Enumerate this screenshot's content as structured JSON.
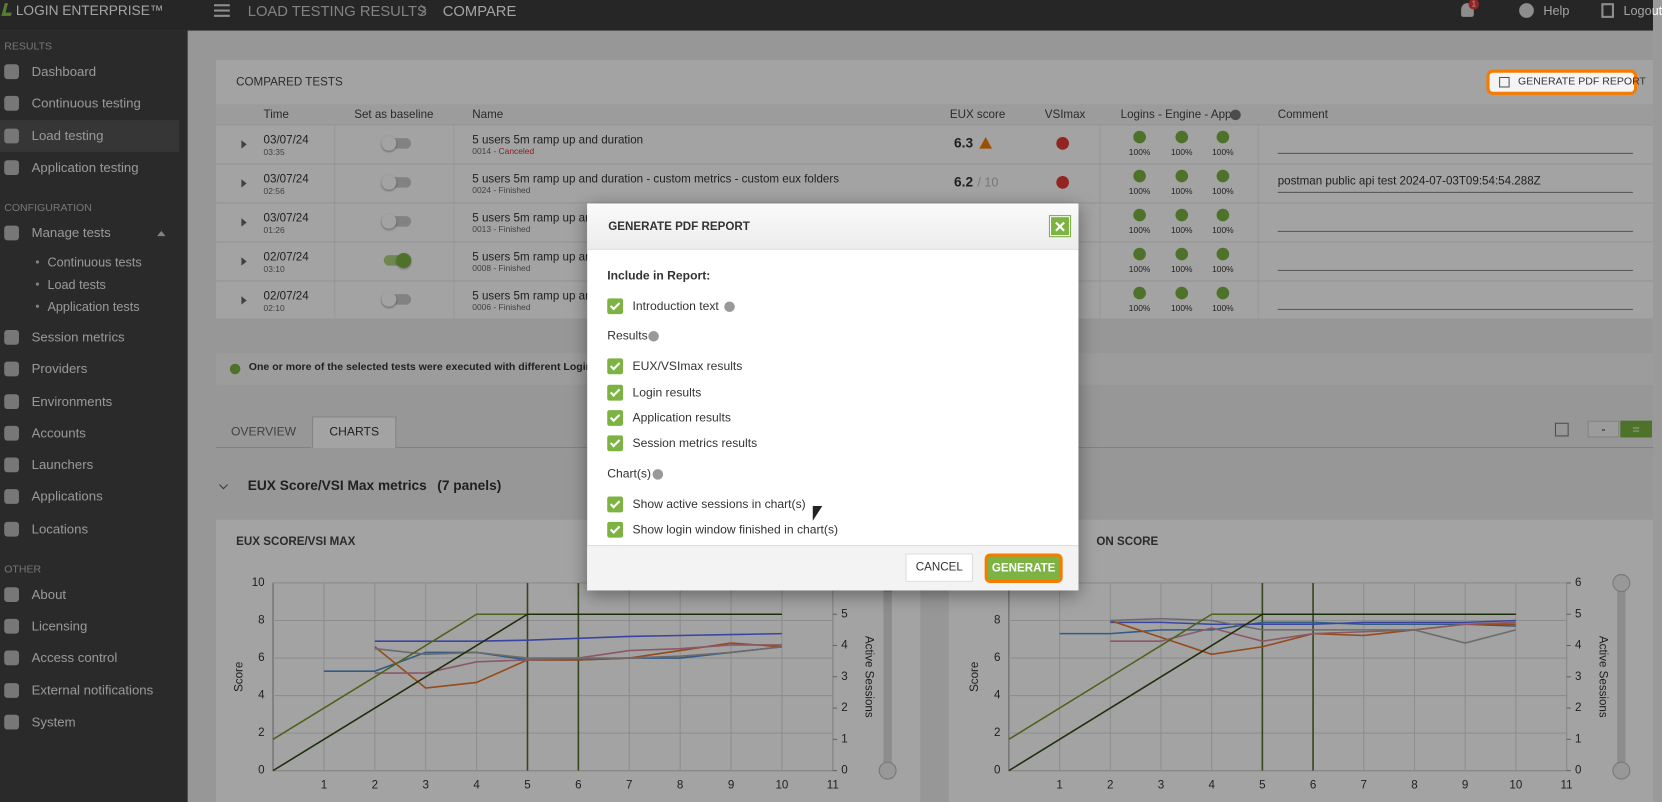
{
  "header": {
    "brand": "LOGIN ENTERPRISE™",
    "breadcrumb": [
      "LOAD TESTING RESULTS",
      "COMPARE"
    ],
    "notifications": "1",
    "help": "Help",
    "logout": "Logout"
  },
  "sidebar": {
    "active": [
      0,
      2
    ],
    "groups": [
      {
        "title": "RESULTS",
        "items": [
          {
            "label": "Dashboard"
          },
          {
            "label": "Continuous testing"
          },
          {
            "label": "Load testing"
          },
          {
            "label": "Application testing"
          }
        ]
      },
      {
        "title": "CONFIGURATION",
        "items": [
          {
            "label": "Manage tests",
            "children": [
              "Continuous tests",
              "Load tests",
              "Application tests"
            ]
          },
          {
            "label": "Session metrics"
          },
          {
            "label": "Providers"
          },
          {
            "label": "Environments"
          },
          {
            "label": "Accounts"
          },
          {
            "label": "Launchers"
          },
          {
            "label": "Applications"
          },
          {
            "label": "Locations"
          }
        ]
      },
      {
        "title": "OTHER",
        "items": [
          {
            "label": "About"
          },
          {
            "label": "Licensing"
          },
          {
            "label": "Access control"
          },
          {
            "label": "External notifications"
          },
          {
            "label": "System"
          }
        ]
      }
    ]
  },
  "compared_tests": {
    "title": "COMPARED TESTS",
    "button": "GENERATE PDF REPORT",
    "columns": [
      "Time",
      "Set as baseline",
      "Name",
      "EUX score",
      "VSImax",
      "Logins - Engine - Apps",
      "Comment"
    ],
    "rows": [
      {
        "date": "03/07/24",
        "time": "03:35",
        "baseline": false,
        "name": "5 users 5m ramp up and duration",
        "id": "0014 - ",
        "status": "Canceled",
        "eux": "6.3",
        "warning": true,
        "results": [
          "100%",
          "100%",
          "100%"
        ],
        "comment": ""
      },
      {
        "date": "03/07/24",
        "time": "02:56",
        "baseline": false,
        "name": "5 users 5m ramp up and duration - custom metrics - custom eux folders",
        "id": "0024 - ",
        "status": "Finished",
        "eux": "6.2",
        "eux_suffix": "/ 10",
        "results": [
          "100%",
          "100%",
          "100%"
        ],
        "comment": "postman public api test 2024-07-03T09:54:54.288Z"
      },
      {
        "date": "03/07/24",
        "time": "01:26",
        "baseline": false,
        "name": "5 users 5m ramp up and d",
        "id": "0013 - ",
        "status": "Finished",
        "results": [
          "100%",
          "100%",
          "100%"
        ],
        "comment": ""
      },
      {
        "date": "02/07/24",
        "time": "03:10",
        "baseline": true,
        "name": "5 users 5m ramp up and d",
        "id": "0008 - ",
        "status": "Finished",
        "results": [
          "100%",
          "100%",
          "100%"
        ],
        "comment": ""
      },
      {
        "date": "02/07/24",
        "time": "02:10",
        "baseline": false,
        "name": "5 users 5m ramp up and d",
        "id": "0006 - ",
        "status": "Finished",
        "results": [
          "100%",
          "100%",
          "100%"
        ],
        "comment": ""
      }
    ]
  },
  "notice": "One or more of the selected tests were executed with different Login Enterprise",
  "tabs": {
    "items": [
      "OVERVIEW",
      "CHARTS"
    ],
    "active": 1,
    "tools": [
      "-",
      "="
    ]
  },
  "panel_group": {
    "title": "EUX Score/VSI Max metrics",
    "count": "(7 panels)"
  },
  "chart_data": [
    {
      "type": "line",
      "title": "EUX SCORE/VSI MAX",
      "ylabel": "Score",
      "y2label": "Active Sessions",
      "xlim": [
        0,
        11
      ],
      "xticks": [
        1,
        2,
        3,
        4,
        5,
        6,
        7,
        8,
        9,
        10,
        11
      ],
      "ylim": [
        0,
        10
      ],
      "yticks": [
        0,
        2,
        4,
        6,
        8,
        10
      ],
      "y2lim": [
        0,
        6
      ],
      "y2ticks": [
        0,
        1,
        2,
        3,
        4,
        5,
        6
      ],
      "grid": true,
      "x_markers": [
        5,
        6
      ],
      "marker_color": "#556b2f",
      "series": [
        {
          "color": "#4f8fd0",
          "x": [
            1,
            2,
            3,
            4,
            5,
            6,
            7,
            8,
            9,
            10
          ],
          "values": [
            5.3,
            5.3,
            6.3,
            6.3,
            5.9,
            5.9,
            6.0,
            6.0,
            6.3,
            6.6
          ]
        },
        {
          "color": "#5b6cff",
          "x": [
            1,
            2,
            3,
            4,
            5,
            6,
            7,
            8,
            9,
            10
          ],
          "values": [
            null,
            6.9,
            6.9,
            6.9,
            6.95,
            7.05,
            7.15,
            7.2,
            7.25,
            7.3
          ]
        },
        {
          "color": "#e8752b",
          "x": [
            1,
            2,
            3,
            4,
            5,
            6,
            7,
            8,
            9,
            10
          ],
          "values": [
            null,
            6.6,
            4.4,
            4.7,
            5.9,
            5.9,
            6.0,
            6.4,
            6.8,
            6.6
          ]
        },
        {
          "color": "#d98aa0",
          "x": [
            1,
            2,
            3,
            4,
            5,
            6,
            7,
            8,
            9,
            10
          ],
          "values": [
            null,
            5.2,
            5.2,
            5.8,
            5.9,
            6.0,
            6.4,
            6.5,
            6.7,
            6.7
          ]
        },
        {
          "color": "#a8a8a8",
          "x": [
            1,
            2,
            3,
            4,
            5,
            6,
            7,
            8,
            9,
            10
          ],
          "values": [
            null,
            6.5,
            6.2,
            6.3,
            6.0,
            6.0,
            6.0,
            6.1,
            6.3,
            6.6
          ]
        },
        {
          "color": "#7a9a2e",
          "axis": "y2",
          "x": [
            0,
            4,
            10
          ],
          "values": [
            1,
            5,
            5
          ]
        },
        {
          "color": "#2e4a10",
          "axis": "y2",
          "x": [
            0,
            5,
            10
          ],
          "values": [
            0,
            5,
            5
          ]
        }
      ]
    },
    {
      "type": "line",
      "title": "ON SCORE",
      "ylabel": "Score",
      "y2label": "Active Sessions",
      "xlim": [
        0,
        11
      ],
      "xticks": [
        1,
        2,
        3,
        4,
        5,
        6,
        7,
        8,
        9,
        10,
        11
      ],
      "ylim": [
        0,
        10
      ],
      "yticks": [
        0,
        2,
        4,
        6,
        8,
        10
      ],
      "y2lim": [
        0,
        6
      ],
      "y2ticks": [
        0,
        1,
        2,
        3,
        4,
        5,
        6
      ],
      "grid": true,
      "x_markers": [
        5,
        6
      ],
      "marker_color": "#556b2f",
      "series": [
        {
          "color": "#4f8fd0",
          "x": [
            1,
            2,
            3,
            4,
            5,
            6,
            7,
            8,
            9,
            10
          ],
          "values": [
            7.3,
            7.3,
            7.5,
            7.5,
            7.9,
            7.9,
            7.8,
            7.8,
            7.8,
            7.7
          ]
        },
        {
          "color": "#5b6cff",
          "x": [
            1,
            2,
            3,
            4,
            5,
            6,
            7,
            8,
            9,
            10
          ],
          "values": [
            null,
            7.9,
            7.9,
            7.8,
            7.8,
            7.8,
            7.9,
            7.9,
            7.9,
            8.0
          ]
        },
        {
          "color": "#e8752b",
          "x": [
            1,
            2,
            3,
            4,
            5,
            6,
            7,
            8,
            9,
            10
          ],
          "values": [
            null,
            8.0,
            7.1,
            6.2,
            6.6,
            7.3,
            7.2,
            7.5,
            7.8,
            7.8
          ]
        },
        {
          "color": "#d98aa0",
          "x": [
            1,
            2,
            3,
            4,
            5,
            6,
            7,
            8,
            9,
            10
          ],
          "values": [
            null,
            6.9,
            6.9,
            7.6,
            6.9,
            7.3,
            7.4,
            7.5,
            7.8,
            7.9
          ]
        },
        {
          "color": "#a8a8a8",
          "x": [
            1,
            2,
            3,
            4,
            5,
            6,
            7,
            8,
            9,
            10
          ],
          "values": [
            null,
            8.0,
            8.1,
            8.0,
            7.5,
            7.5,
            7.5,
            7.5,
            6.8,
            7.5
          ]
        },
        {
          "color": "#7a9a2e",
          "axis": "y2",
          "x": [
            0,
            4,
            10
          ],
          "values": [
            1,
            5,
            5
          ]
        },
        {
          "color": "#2e4a10",
          "axis": "y2",
          "x": [
            0,
            5,
            10
          ],
          "values": [
            0,
            5,
            5
          ]
        }
      ]
    }
  ],
  "modal": {
    "title": "GENERATE PDF REPORT",
    "sections": [
      {
        "title": "Include in Report:",
        "info": false,
        "options": [
          {
            "label": "Introduction text",
            "checked": true,
            "info": true
          }
        ]
      },
      {
        "title": "Results",
        "info": true,
        "options": [
          {
            "label": "EUX/VSImax results",
            "checked": true
          },
          {
            "label": "Login results",
            "checked": true
          },
          {
            "label": "Application results",
            "checked": true
          },
          {
            "label": "Session metrics results",
            "checked": true
          }
        ]
      },
      {
        "title": "Chart(s)",
        "info": true,
        "options": [
          {
            "label": "Show active sessions in chart(s)",
            "checked": true
          },
          {
            "label": "Show login window finished in chart(s)",
            "checked": true
          }
        ]
      }
    ],
    "cancel": "CANCEL",
    "generate": "GENERATE"
  }
}
